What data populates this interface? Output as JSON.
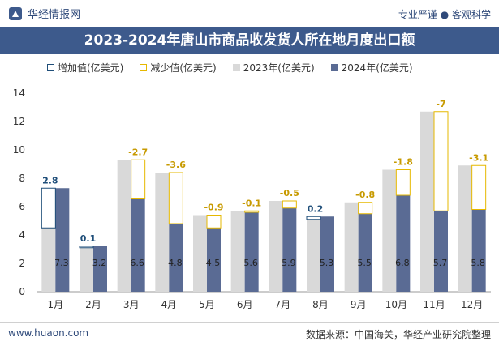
{
  "header": {
    "brand": "华经情报网",
    "tagline": "专业严谨 ● 客观科学"
  },
  "title": "2023-2024年唐山市商品收发货人所在地月度出口额",
  "legend": {
    "increase": "增加值(亿美元)",
    "decrease": "减少值(亿美元)",
    "y2023": "2023年(亿美元)",
    "y2024": "2024年(亿美元)"
  },
  "footer": {
    "site": "www.huaon.com",
    "source": "数据来源：中国海关，华经产业研究院整理"
  },
  "colors": {
    "bar2023": "#d9d9d9",
    "bar2024": "#5a6b94",
    "increase": "#1f4e79",
    "decrease": "#e6b800",
    "title_bg": "#3d5a8c"
  },
  "chart_data": {
    "type": "bar",
    "categories": [
      "1月",
      "2月",
      "3月",
      "4月",
      "5月",
      "6月",
      "7月",
      "8月",
      "9月",
      "10月",
      "11月",
      "12月"
    ],
    "series": [
      {
        "name": "2023年(亿美元)",
        "values": [
          4.5,
          3.1,
          9.3,
          8.4,
          5.4,
          5.7,
          6.4,
          5.1,
          6.3,
          8.6,
          12.7,
          8.9
        ]
      },
      {
        "name": "2024年(亿美元)",
        "values": [
          7.3,
          3.2,
          6.6,
          4.8,
          4.5,
          5.6,
          5.9,
          5.3,
          5.5,
          6.8,
          5.7,
          5.8
        ]
      }
    ],
    "change_labels": [
      "2.8",
      "0.1",
      "-2.7",
      "-3.6",
      "-0.9",
      "-0.1",
      "-0.5",
      "0.2",
      "-0.8",
      "-1.8",
      "-7",
      "-3.1"
    ],
    "yticks": [
      0,
      2,
      4,
      6,
      8,
      10,
      12,
      14
    ],
    "ylim": [
      0,
      14
    ],
    "legend_position": "top"
  }
}
